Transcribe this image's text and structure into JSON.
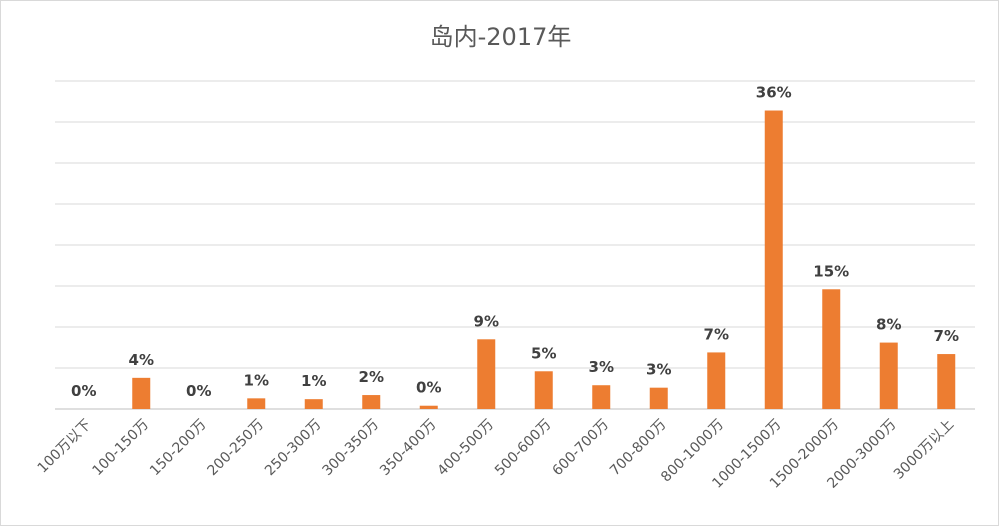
{
  "chart_data": {
    "type": "bar",
    "title": "岛内-2017年",
    "xlabel": "",
    "ylabel": "",
    "categories": [
      "100万以下",
      "100-150万",
      "150-200万",
      "200-250万",
      "250-300万",
      "300-350万",
      "350-400万",
      "400-500万",
      "500-600万",
      "600-700万",
      "700-800万",
      "800-1000万",
      "1000-1500万",
      "1500-2000万",
      "2000-3000万",
      "3000万以上"
    ],
    "values": [
      0.0,
      3.8,
      0.0,
      1.3,
      1.2,
      1.7,
      0.4,
      8.5,
      4.6,
      2.9,
      2.6,
      6.9,
      36.4,
      14.6,
      8.1,
      6.7
    ],
    "data_labels": [
      "0%",
      "4%",
      "0%",
      "1%",
      "1%",
      "2%",
      "0%",
      "9%",
      "5%",
      "3%",
      "3%",
      "7%",
      "36%",
      "15%",
      "8%",
      "7%"
    ],
    "ylim": [
      0,
      40
    ],
    "grid": true,
    "legend": "none",
    "bar_color": "#ed7d31"
  }
}
